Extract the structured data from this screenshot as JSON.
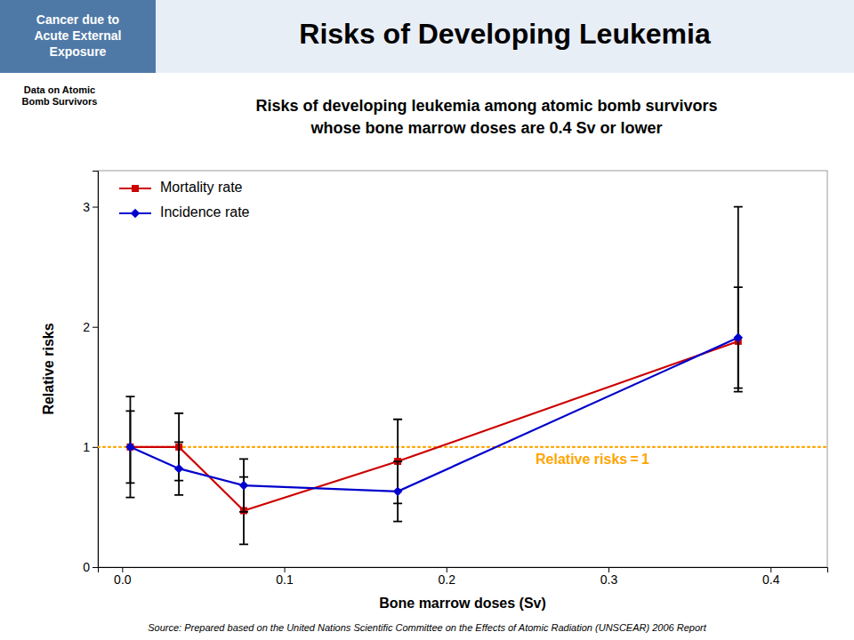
{
  "chart_data": {
    "type": "line",
    "title": "Risks of Developing Leukemia",
    "subtitle": "Risks of developing leukemia among atomic bomb survivors\nwhose bone marrow doses are 0.4 Sv or lower",
    "annotations": [
      "Cancer due to\nAcute External\nExposure",
      "Data on Atomic\nBomb Survivors",
      "Source: Prepared based on the United Nations Scientific Committee on the Effects of Atomic Radiation (UNSCEAR) 2006 Report"
    ],
    "x_label": "Bone marrow doses (Sv)",
    "y_label": "Relative risks",
    "x": [
      0.005,
      0.035,
      0.075,
      0.17,
      0.38
    ],
    "series": [
      {
        "name": "Mortality rate",
        "color": "#CC0000",
        "marker": "square",
        "values": [
          1.0,
          1.0,
          0.47,
          0.88,
          1.88
        ],
        "error_low": [
          0.42,
          0.28,
          0.28,
          0.35,
          0.42
        ],
        "error_high": [
          0.42,
          0.28,
          0.28,
          0.35,
          1.12
        ]
      },
      {
        "name": "Incidence rate",
        "color": "#0000CC",
        "marker": "diamond",
        "values": [
          1.0,
          0.82,
          0.68,
          0.63,
          1.91
        ],
        "error_low": [
          0.3,
          0.22,
          0.22,
          0.25,
          0.42
        ],
        "error_high": [
          0.3,
          0.22,
          0.22,
          0.25,
          0.42
        ]
      }
    ],
    "reference_line": {
      "y": 1.0,
      "label": "Relative risks = 1",
      "color": "#FFA500"
    },
    "xlim": [
      -0.015,
      0.435
    ],
    "ylim": [
      0,
      3.3
    ],
    "xticks": [
      {
        "value": 0.0,
        "label": "0.0"
      },
      0.1,
      0.2,
      0.3,
      0.4
    ],
    "yticks": [
      0,
      1,
      2,
      3
    ],
    "grid": false,
    "legend": "upper left"
  }
}
